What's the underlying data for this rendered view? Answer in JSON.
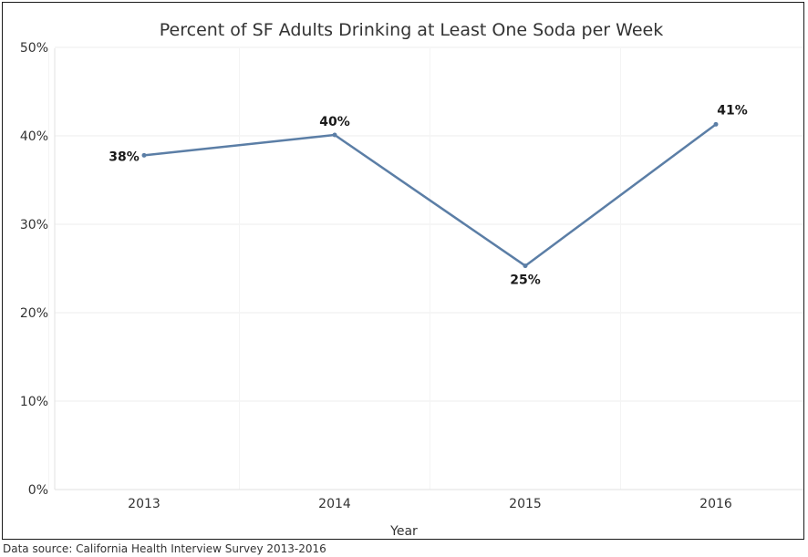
{
  "chart_data": {
    "type": "line",
    "title": "Percent of SF Adults Drinking at Least One Soda per Week",
    "xlabel": "Year",
    "ylabel": "",
    "categories": [
      "2013",
      "2014",
      "2015",
      "2016"
    ],
    "series": [
      {
        "values": [
          37.8,
          40.1,
          25.3,
          41.3
        ],
        "labels": [
          "38%",
          "40%",
          "25%",
          "41%"
        ]
      }
    ],
    "ylim": [
      0,
      50
    ],
    "yticks": [
      0,
      10,
      20,
      30,
      40,
      50
    ],
    "ytick_labels": [
      "0%",
      "10%",
      "20%",
      "30%",
      "40%",
      "50%"
    ],
    "grid": true,
    "legend": "none",
    "colors": {
      "line": "#5b7ea6",
      "grid": "#ececec",
      "text": "#333333",
      "label": "#1a1a1a"
    }
  },
  "source_note": "Data source: California Health Interview Survey 2013-2016"
}
